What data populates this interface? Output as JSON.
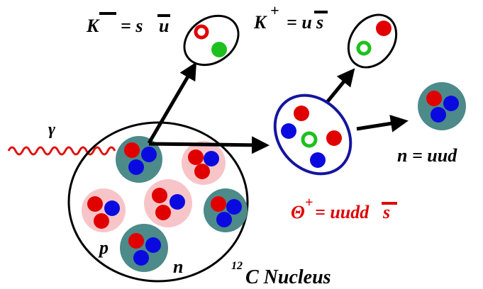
{
  "labels": {
    "k_minus": {
      "symbol": "K",
      "charge": "−",
      "quarks": "= s",
      "antiquark": "u"
    },
    "k_plus": {
      "symbol": "K",
      "charge": "+",
      "quarks": "= u",
      "antiquark": "s"
    },
    "photon": "γ",
    "theta": {
      "symbol": "Θ",
      "charge": "+",
      "quarks": "= uudd",
      "antiquark": "s"
    },
    "neutron_out": "n = uud",
    "proton": "p",
    "neutron": "n",
    "nucleus": {
      "mass_number": "12",
      "name": "C Nucleus"
    }
  }
}
